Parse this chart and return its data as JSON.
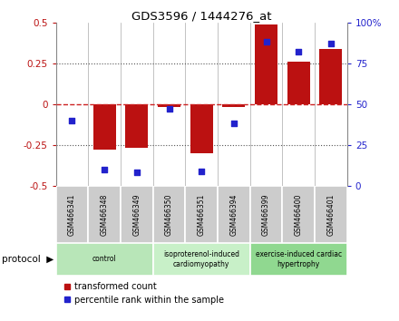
{
  "title": "GDS3596 / 1444276_at",
  "samples": [
    "GSM466341",
    "GSM466348",
    "GSM466349",
    "GSM466350",
    "GSM466351",
    "GSM466394",
    "GSM466399",
    "GSM466400",
    "GSM466401"
  ],
  "transformed_count": [
    0.0,
    -0.28,
    -0.27,
    -0.02,
    -0.3,
    -0.02,
    0.49,
    0.26,
    0.34
  ],
  "percentile_rank": [
    40,
    10,
    8,
    47,
    9,
    38,
    88,
    82,
    87
  ],
  "groups": [
    {
      "label": "control",
      "start": 0,
      "end": 3,
      "color": "#b8e6b8"
    },
    {
      "label": "isoproterenol-induced\ncardiomyopathy",
      "start": 3,
      "end": 6,
      "color": "#c8f0c8"
    },
    {
      "label": "exercise-induced cardiac\nhypertrophy",
      "start": 6,
      "end": 9,
      "color": "#90d890"
    }
  ],
  "ylim_left": [
    -0.5,
    0.5
  ],
  "ylim_right": [
    0,
    100
  ],
  "yticks_left": [
    -0.5,
    -0.25,
    0,
    0.25,
    0.5
  ],
  "yticks_right": [
    0,
    25,
    50,
    75,
    100
  ],
  "bar_color": "#bb1111",
  "dot_color": "#2222cc",
  "hline_color": "#cc2222",
  "bg_color": "#ffffff",
  "protocol_label": "protocol",
  "legend_bar": "transformed count",
  "legend_dot": "percentile rank within the sample"
}
